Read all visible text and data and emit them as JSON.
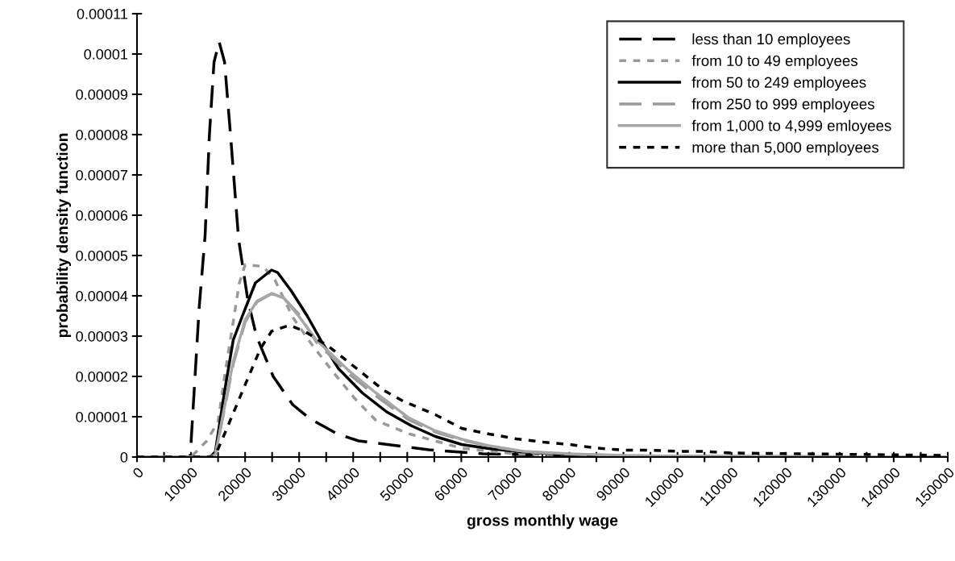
{
  "chart_data": {
    "type": "line",
    "xlabel": "gross monthly wage",
    "ylabel": "probability density function",
    "xlim": [
      0,
      150000
    ],
    "ylim": [
      0,
      0.00011
    ],
    "xticks": [
      0,
      {
        "value": 5000,
        "label": null
      },
      10000,
      {
        "value": 15000,
        "label": null
      },
      20000,
      {
        "value": 25000,
        "label": null
      },
      30000,
      {
        "value": 35000,
        "label": null
      },
      40000,
      {
        "value": 45000,
        "label": null
      },
      50000,
      {
        "value": 55000,
        "label": null
      },
      60000,
      {
        "value": 65000,
        "label": null
      },
      70000,
      {
        "value": 75000,
        "label": null
      },
      80000,
      {
        "value": 85000,
        "label": null
      },
      90000,
      {
        "value": 95000,
        "label": null
      },
      100000,
      {
        "value": 105000,
        "label": null
      },
      110000,
      {
        "value": 115000,
        "label": null
      },
      120000,
      {
        "value": 125000,
        "label": null
      },
      130000,
      {
        "value": 135000,
        "label": null
      },
      140000,
      {
        "value": 145000,
        "label": null
      },
      150000
    ],
    "yticks": [
      0,
      {
        "value": 1e-05,
        "label": "0.00001"
      },
      {
        "value": 2e-05,
        "label": "0.00002"
      },
      {
        "value": 3e-05,
        "label": "0.00003"
      },
      {
        "value": 4e-05,
        "label": "0.00004"
      },
      {
        "value": 5e-05,
        "label": "0.00005"
      },
      {
        "value": 6e-05,
        "label": "0.00006"
      },
      {
        "value": 7e-05,
        "label": "0.00007"
      },
      {
        "value": 8e-05,
        "label": "0.00008"
      },
      {
        "value": 9e-05,
        "label": "0.00009"
      },
      {
        "value": 0.0001,
        "label": "0.0001"
      },
      {
        "value": 0.00011,
        "label": "0.00011"
      }
    ],
    "grid": false,
    "legend": "top right",
    "marker": "none",
    "series": [
      {
        "name": "less than 10 employees",
        "color": "#000000",
        "line_style": "dashed",
        "x": [
          0,
          5000,
          9800,
          10000,
          11500,
          12600,
          13400,
          14250,
          15200,
          16200,
          17300,
          18800,
          20500,
          22100,
          25200,
          28800,
          32000,
          37000,
          41000,
          44000,
          54000,
          64000,
          74000,
          85000,
          100000,
          110000,
          150000
        ],
        "values": [
          0,
          0,
          0,
          3.6e-06,
          3.7e-05,
          5.5e-05,
          8e-05,
          9.8e-05,
          0.000103,
          9.8e-05,
          8e-05,
          5.4e-05,
          3.9e-05,
          3e-05,
          2e-05,
          1.3e-05,
          9.5e-06,
          5.8e-06,
          4e-06,
          3.5e-06,
          1.8e-06,
          8e-07,
          5e-07,
          2e-07,
          1e-07,
          0,
          0
        ]
      },
      {
        "name": "from 10 to 49 employees",
        "color": "#999999",
        "line_style": "dotted",
        "x": [
          0,
          10000,
          12900,
          15000,
          16200,
          17800,
          18900,
          20000,
          23300,
          25500,
          28800,
          32300,
          35800,
          40300,
          44200,
          50200,
          55700,
          60000,
          70000,
          80000,
          90000,
          150000
        ],
        "values": [
          0,
          0,
          4e-06,
          8.8e-06,
          2e-05,
          3.35e-05,
          4.3e-05,
          4.77e-05,
          4.73e-05,
          4.4e-05,
          3.47e-05,
          2.8e-05,
          2.19e-05,
          1.45e-05,
          9.1e-06,
          5.8e-06,
          3.8e-06,
          2.2e-06,
          8e-07,
          3e-07,
          1e-07,
          0
        ]
      },
      {
        "name": "from 50 to 249 employees",
        "color": "#000000",
        "line_style": "solid",
        "x": [
          0,
          13500,
          14500,
          16200,
          17800,
          19500,
          21900,
          24900,
          26000,
          28500,
          31500,
          34300,
          37300,
          41700,
          46200,
          50700,
          55200,
          60100,
          65100,
          70100,
          80000,
          90000,
          100000,
          150000
        ],
        "values": [
          0,
          0,
          1.3e-06,
          1.63e-05,
          2.9e-05,
          3.5e-05,
          4.32e-05,
          4.64e-05,
          4.58e-05,
          4.13e-05,
          3.5e-05,
          2.83e-05,
          2.19e-05,
          1.59e-05,
          1.12e-05,
          7.8e-06,
          5.1e-06,
          3.1e-06,
          2.1e-06,
          1.4e-06,
          5e-07,
          2e-07,
          1e-07,
          0
        ]
      },
      {
        "name": "from 250 to 999 employees",
        "color": "#999999",
        "line_style": "dashed",
        "x": [
          0,
          13500,
          14500,
          16200,
          17800,
          20000,
          22200,
          24900,
          27100,
          29900,
          33200,
          39300,
          44200,
          50200,
          55200,
          60100,
          65100,
          71600,
          80000,
          90000,
          100000,
          150000
        ],
        "values": [
          0,
          0,
          6e-07,
          1.2e-05,
          2.3e-05,
          3.35e-05,
          3.85e-05,
          4.05e-05,
          3.95e-05,
          3.55e-05,
          2.85e-05,
          2.05e-05,
          1.52e-05,
          9.3e-06,
          6.2e-06,
          4.2e-06,
          2.7e-06,
          1.3e-06,
          7e-07,
          3e-07,
          2e-07,
          0
        ]
      },
      {
        "name": "from 1,000 to 4,999 emloyees",
        "color": "#a6a6a6",
        "line_style": "solid",
        "x": [
          0,
          13500,
          14500,
          16200,
          17800,
          20000,
          22200,
          24900,
          27100,
          29900,
          33200,
          39300,
          44200,
          50200,
          55200,
          60100,
          65100,
          71600,
          80000,
          90000,
          100000,
          150000
        ],
        "values": [
          0,
          0,
          6e-07,
          1.25e-05,
          2.37e-05,
          3.4e-05,
          3.87e-05,
          4.06e-05,
          3.95e-05,
          3.5e-05,
          2.9e-05,
          2.13e-05,
          1.59e-05,
          9.8e-06,
          6.5e-06,
          4.4e-06,
          2.8e-06,
          1.4e-06,
          8e-07,
          4e-07,
          2e-07,
          0
        ]
      },
      {
        "name": "more than 5,000 employees",
        "color": "#000000",
        "line_style": "dotted",
        "x": [
          0,
          14000,
          15000,
          16700,
          19500,
          22800,
          24900,
          28200,
          31000,
          35400,
          40700,
          45700,
          49200,
          55200,
          60100,
          65200,
          70200,
          75200,
          80100,
          85100,
          90100,
          95000,
          100000,
          105000,
          110000,
          150000
        ],
        "values": [
          0,
          0,
          2e-06,
          7.3e-06,
          1.63e-05,
          2.68e-05,
          3.12e-05,
          3.27e-05,
          3.12e-05,
          2.75e-05,
          2.19e-05,
          1.65e-05,
          1.39e-05,
          1.05e-05,
          7.1e-06,
          5.7e-06,
          4.5e-06,
          3.7e-06,
          3.1e-06,
          2.2e-06,
          1.7e-06,
          1.7e-06,
          1.4e-06,
          1.4e-06,
          1e-06,
          4e-07
        ]
      }
    ]
  }
}
